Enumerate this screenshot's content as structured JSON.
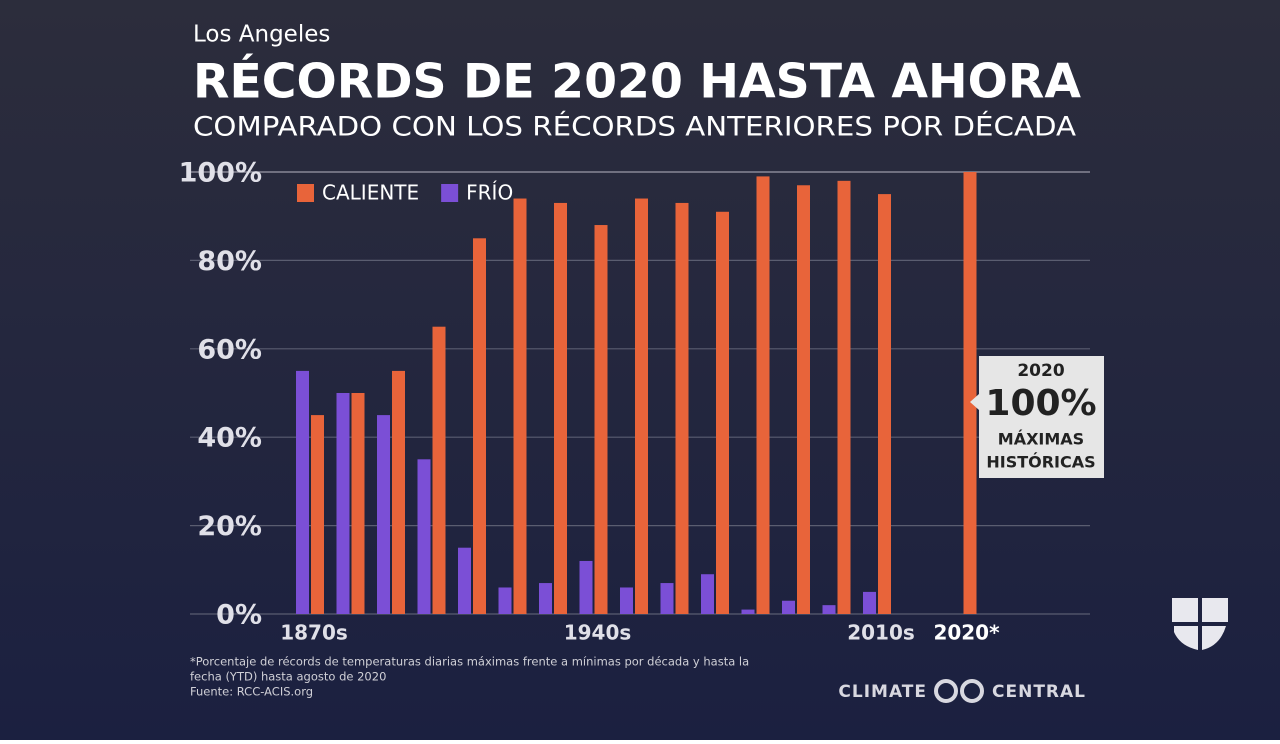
{
  "chart_data": {
    "type": "bar",
    "location": "Los Angeles",
    "title": "RÉCORDS DE 2020 HASTA AHORA",
    "subtitle": "COMPARADO CON LOS RÉCORDS ANTERIORES POR DÉCADA",
    "categories": [
      "1870s",
      null,
      null,
      null,
      null,
      null,
      null,
      "1940s",
      null,
      null,
      null,
      null,
      null,
      null,
      "2010s",
      "2020*"
    ],
    "series": [
      {
        "name": "CALIENTE",
        "color": "#e8643a",
        "values": [
          45,
          50,
          55,
          65,
          85,
          94,
          93,
          88,
          94,
          93,
          91,
          99,
          97,
          98,
          95,
          100
        ]
      },
      {
        "name": "FRÍO",
        "color": "#7b4fd6",
        "values": [
          55,
          50,
          45,
          35,
          15,
          6,
          7,
          12,
          6,
          7,
          9,
          1,
          3,
          2,
          5,
          null
        ]
      }
    ],
    "ylim": [
      0,
      100
    ],
    "yticks": [
      {
        "value": 0,
        "label": "0%"
      },
      {
        "value": 20,
        "label": "20%"
      },
      {
        "value": 40,
        "label": "40%"
      },
      {
        "value": 60,
        "label": "60%"
      },
      {
        "value": 80,
        "label": "80%"
      },
      {
        "value": 100,
        "label": "100%"
      }
    ],
    "grid": true,
    "legend": "upper left",
    "annotation": {
      "year": "2020",
      "value": "100%",
      "lines": [
        "MÁXIMAS",
        "HISTÓRICAS"
      ]
    },
    "footnote": [
      "*Porcentaje de récords de temperaturas diarias  máximas frente a mínimas por década y hasta la",
      "fecha (YTD) hasta agosto de 2020",
      "Fuente: RCC-ACIS.org"
    ],
    "source_logo": [
      "CLIMATE",
      "CENTRAL"
    ]
  }
}
